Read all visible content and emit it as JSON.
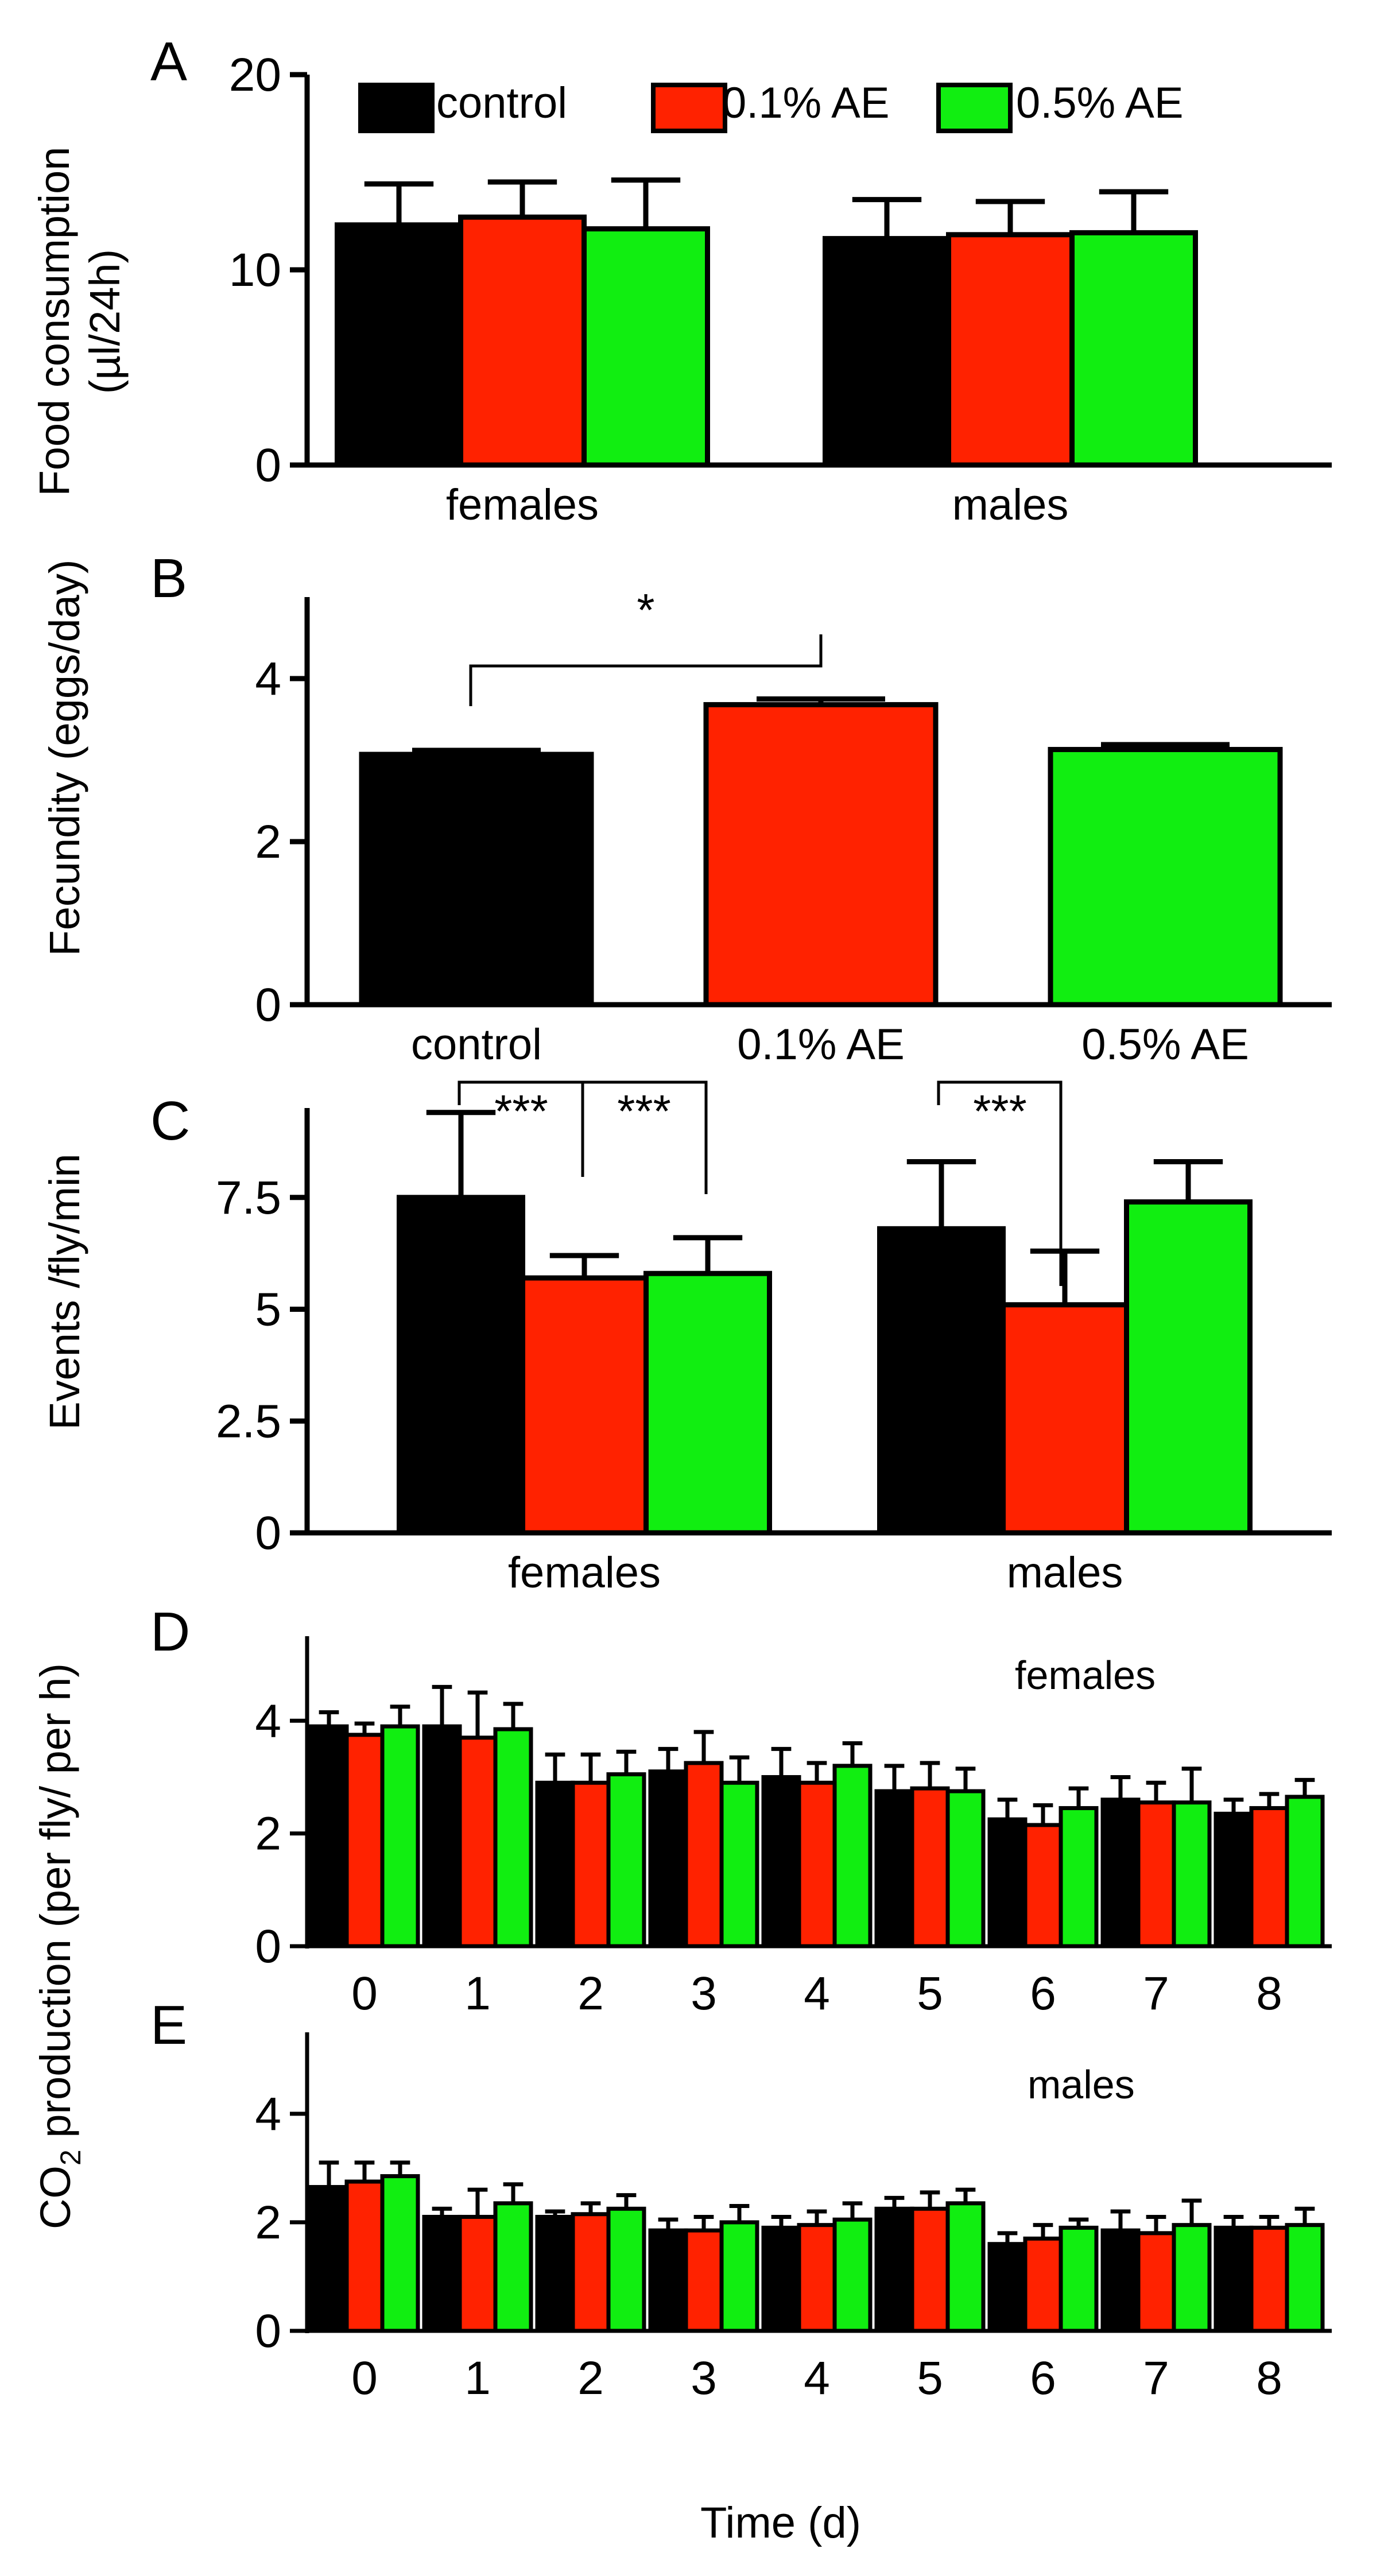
{
  "colors": {
    "control": "#000000",
    "ae01": "#ff2200",
    "ae05": "#11ee11"
  },
  "legend": {
    "control": "control",
    "ae01": "0.1% AE",
    "ae05": "0.5% AE"
  },
  "chart_data": [
    {
      "panel": "A",
      "type": "bar",
      "ylabel_line1": "Food consumption",
      "ylabel_line2": "(µl/24h)",
      "ylim": [
        0,
        20
      ],
      "yticks": [
        0,
        10,
        20
      ],
      "categories": [
        "females",
        "males"
      ],
      "series": [
        {
          "name": "control",
          "values": [
            12.3,
            11.6
          ],
          "errors": [
            2.1,
            2.0
          ]
        },
        {
          "name": "0.1% AE",
          "values": [
            12.7,
            11.8
          ],
          "errors": [
            1.8,
            1.7
          ]
        },
        {
          "name": "0.5% AE",
          "values": [
            12.1,
            11.9
          ],
          "errors": [
            2.5,
            2.1
          ]
        }
      ],
      "legend_position": "top"
    },
    {
      "panel": "B",
      "type": "bar",
      "ylabel": "Fecundity (eggs/day)",
      "ylim": [
        0,
        5
      ],
      "yticks": [
        0,
        2,
        4
      ],
      "categories": [
        "control",
        "0.1% AE",
        "0.5% AE"
      ],
      "values": [
        3.07,
        3.68,
        3.13
      ],
      "errors": [
        0.05,
        0.07,
        0.06
      ],
      "significance": [
        {
          "from": 0,
          "to": 1,
          "label": "*"
        }
      ]
    },
    {
      "panel": "C",
      "type": "bar",
      "ylabel": "Events /fly/min",
      "ylim": [
        0,
        9.5
      ],
      "yticks": [
        0,
        2.5,
        5,
        7.5
      ],
      "ytick_labels": [
        "0",
        "2.5",
        "5",
        "7.5"
      ],
      "categories": [
        "females",
        "males"
      ],
      "series": [
        {
          "name": "control",
          "values": [
            7.5,
            6.8
          ],
          "errors": [
            1.9,
            1.5
          ]
        },
        {
          "name": "0.1% AE",
          "values": [
            5.7,
            5.1
          ],
          "errors": [
            0.5,
            1.2
          ]
        },
        {
          "name": "0.5% AE",
          "values": [
            5.8,
            7.4
          ],
          "errors": [
            0.8,
            0.9
          ]
        }
      ],
      "significance": [
        {
          "group": 0,
          "from": 0,
          "to": 1,
          "label": "***"
        },
        {
          "group": 0,
          "from": 1,
          "to": 2,
          "label": "***"
        },
        {
          "group": 1,
          "from": 0,
          "to": 1,
          "label": "***"
        }
      ]
    },
    {
      "panel": "D",
      "type": "bar",
      "subtitle": "females",
      "ylim": [
        0,
        5.5
      ],
      "yticks": [
        0,
        2,
        4
      ],
      "x": [
        0,
        1,
        2,
        3,
        4,
        5,
        6,
        7,
        8
      ],
      "series": [
        {
          "name": "control",
          "values": [
            3.9,
            3.9,
            2.9,
            3.1,
            3.0,
            2.75,
            2.25,
            2.6,
            2.35
          ],
          "errors": [
            0.25,
            0.7,
            0.5,
            0.4,
            0.5,
            0.45,
            0.35,
            0.4,
            0.25
          ]
        },
        {
          "name": "0.1% AE",
          "values": [
            3.75,
            3.7,
            2.9,
            3.25,
            2.9,
            2.8,
            2.15,
            2.55,
            2.45
          ],
          "errors": [
            0.2,
            0.8,
            0.5,
            0.55,
            0.35,
            0.45,
            0.35,
            0.35,
            0.25
          ]
        },
        {
          "name": "0.5% AE",
          "values": [
            3.9,
            3.85,
            3.05,
            2.9,
            3.2,
            2.75,
            2.45,
            2.55,
            2.65
          ],
          "errors": [
            0.35,
            0.45,
            0.4,
            0.45,
            0.4,
            0.4,
            0.35,
            0.6,
            0.3
          ]
        }
      ]
    },
    {
      "panel": "E",
      "type": "bar",
      "subtitle": "males",
      "ylim": [
        0,
        5.5
      ],
      "yticks": [
        0,
        2,
        4
      ],
      "x": [
        0,
        1,
        2,
        3,
        4,
        5,
        6,
        7,
        8
      ],
      "series": [
        {
          "name": "control",
          "values": [
            2.65,
            2.1,
            2.1,
            1.85,
            1.9,
            2.25,
            1.6,
            1.85,
            1.9
          ],
          "errors": [
            0.45,
            0.15,
            0.1,
            0.2,
            0.2,
            0.2,
            0.2,
            0.35,
            0.2
          ]
        },
        {
          "name": "0.1% AE",
          "values": [
            2.75,
            2.1,
            2.15,
            1.85,
            1.95,
            2.25,
            1.7,
            1.8,
            1.9
          ],
          "errors": [
            0.35,
            0.5,
            0.2,
            0.25,
            0.25,
            0.3,
            0.25,
            0.3,
            0.2
          ]
        },
        {
          "name": "0.5% AE",
          "values": [
            2.85,
            2.35,
            2.25,
            2.0,
            2.05,
            2.35,
            1.9,
            1.95,
            1.95
          ],
          "errors": [
            0.25,
            0.35,
            0.25,
            0.3,
            0.3,
            0.25,
            0.15,
            0.45,
            0.3
          ]
        }
      ]
    }
  ],
  "shared_ylabel": {
    "prefix": "CO",
    "subscript": "2",
    "suffix": " production (per fly/ per h)"
  },
  "xlabel_bottom": "Time (d)"
}
